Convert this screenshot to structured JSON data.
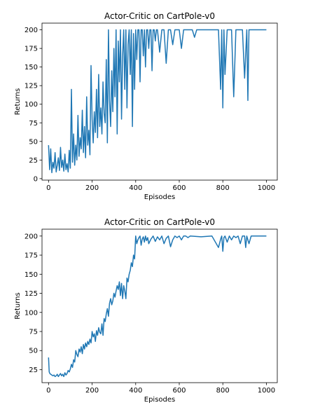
{
  "chart_data": [
    {
      "type": "line",
      "title": "Actor-Critic on CartPole-v0",
      "xlabel": "Episodes",
      "ylabel": "Returns",
      "xlim": [
        -30,
        1050
      ],
      "ylim": [
        -2,
        209
      ],
      "xticks": [
        0,
        200,
        400,
        600,
        800,
        1000
      ],
      "yticks": [
        0,
        25,
        50,
        75,
        100,
        125,
        150,
        175,
        200
      ],
      "grid": false,
      "color": "#1f77b4",
      "series": [
        {
          "x": [
            0,
            5,
            10,
            15,
            20,
            25,
            30,
            35,
            40,
            45,
            50,
            55,
            60,
            65,
            70,
            75,
            80,
            85,
            90,
            95,
            100,
            105,
            110,
            115,
            120,
            125,
            130,
            135,
            140,
            145,
            150,
            155,
            160,
            165,
            170,
            175,
            180,
            185,
            190,
            195,
            200,
            205,
            210,
            215,
            220,
            225,
            230,
            235,
            240,
            245,
            250,
            255,
            260,
            265,
            270,
            275,
            280,
            285,
            290,
            295,
            300,
            305,
            310,
            315,
            320,
            325,
            330,
            335,
            340,
            345,
            350,
            355,
            360,
            365,
            370,
            375,
            380,
            385,
            390,
            395,
            400,
            405,
            410,
            415,
            420,
            425,
            430,
            435,
            440,
            445,
            450,
            455,
            460,
            465,
            470,
            475,
            480,
            485,
            490,
            495,
            500,
            510,
            520,
            530,
            540,
            550,
            560,
            570,
            580,
            590,
            600,
            610,
            620,
            630,
            640,
            650,
            660,
            670,
            680,
            690,
            700,
            720,
            740,
            760,
            780,
            790,
            795,
            800,
            805,
            810,
            820,
            830,
            840,
            850,
            860,
            870,
            880,
            890,
            900,
            910,
            915,
            920,
            930,
            940,
            950,
            960,
            970,
            980,
            990,
            1000
          ],
          "y": [
            45,
            12,
            40,
            8,
            22,
            14,
            35,
            9,
            18,
            28,
            11,
            42,
            15,
            25,
            10,
            33,
            12,
            20,
            9,
            38,
            14,
            120,
            22,
            60,
            18,
            45,
            25,
            85,
            30,
            55,
            40,
            92,
            35,
            70,
            28,
            110,
            45,
            65,
            32,
            152,
            80,
            48,
            90,
            62,
            120,
            55,
            140,
            70,
            95,
            60,
            130,
            88,
            75,
            160,
            48,
            200,
            105,
            70,
            145,
            90,
            175,
            110,
            200,
            60,
            185,
            130,
            200,
            80,
            165,
            200,
            120,
            200,
            95,
            180,
            200,
            140,
            200,
            70,
            195,
            120,
            200,
            160,
            200,
            200,
            130,
            200,
            200,
            165,
            200,
            150,
            200,
            200,
            175,
            200,
            200,
            145,
            200,
            200,
            185,
            200,
            200,
            170,
            200,
            200,
            155,
            200,
            200,
            180,
            200,
            200,
            200,
            175,
            200,
            200,
            200,
            200,
            200,
            190,
            200,
            200,
            200,
            200,
            200,
            200,
            200,
            120,
            200,
            95,
            200,
            140,
            200,
            200,
            200,
            110,
            200,
            200,
            200,
            200,
            135,
            200,
            105,
            200,
            200,
            200,
            200,
            200,
            200,
            200,
            200,
            200
          ]
        }
      ]
    },
    {
      "type": "line",
      "title": "Actor-Critic on CartPole-v0",
      "xlabel": "Episodes",
      "ylabel": "Returns",
      "xlim": [
        -30,
        1050
      ],
      "ylim": [
        8,
        209
      ],
      "xticks": [
        0,
        200,
        400,
        600,
        800,
        1000
      ],
      "yticks": [
        25,
        50,
        75,
        100,
        125,
        150,
        175,
        200
      ],
      "grid": false,
      "color": "#1f77b4",
      "series": [
        {
          "x": [
            0,
            3,
            6,
            10,
            15,
            20,
            25,
            30,
            35,
            40,
            45,
            50,
            55,
            60,
            65,
            70,
            75,
            80,
            85,
            90,
            95,
            100,
            105,
            110,
            115,
            120,
            125,
            130,
            135,
            140,
            145,
            150,
            155,
            160,
            165,
            170,
            175,
            180,
            185,
            190,
            195,
            200,
            205,
            210,
            215,
            220,
            225,
            230,
            235,
            240,
            245,
            250,
            255,
            260,
            265,
            270,
            275,
            280,
            285,
            290,
            295,
            300,
            305,
            310,
            315,
            320,
            325,
            330,
            335,
            340,
            345,
            350,
            355,
            360,
            365,
            370,
            375,
            380,
            385,
            390,
            395,
            400,
            405,
            410,
            415,
            420,
            425,
            430,
            435,
            440,
            445,
            450,
            455,
            460,
            470,
            480,
            490,
            500,
            510,
            520,
            530,
            540,
            550,
            560,
            570,
            580,
            590,
            600,
            610,
            620,
            630,
            640,
            650,
            700,
            750,
            780,
            790,
            795,
            800,
            805,
            810,
            820,
            830,
            840,
            850,
            860,
            870,
            880,
            890,
            900,
            905,
            910,
            920,
            930,
            940,
            950,
            1000
          ],
          "y": [
            41,
            22,
            20,
            19,
            18,
            17,
            18,
            16,
            17,
            19,
            16,
            18,
            20,
            17,
            19,
            16,
            21,
            18,
            20,
            24,
            22,
            26,
            32,
            28,
            38,
            35,
            50,
            45,
            42,
            52,
            48,
            55,
            46,
            58,
            52,
            60,
            55,
            62,
            58,
            65,
            60,
            75,
            68,
            72,
            62,
            76,
            70,
            80,
            74,
            72,
            85,
            70,
            92,
            88,
            98,
            105,
            95,
            112,
            118,
            110,
            115,
            125,
            120,
            128,
            135,
            130,
            140,
            122,
            138,
            118,
            135,
            128,
            118,
            145,
            140,
            150,
            155,
            165,
            160,
            175,
            170,
            200,
            190,
            195,
            198,
            200,
            188,
            196,
            199,
            192,
            200,
            194,
            198,
            190,
            196,
            200,
            193,
            199,
            195,
            200,
            190,
            197,
            200,
            186,
            195,
            200,
            198,
            200,
            195,
            200,
            200,
            198,
            200,
            199,
            200,
            185,
            196,
            200,
            180,
            198,
            200,
            192,
            200,
            195,
            200,
            198,
            200,
            190,
            200,
            200,
            185,
            200,
            190,
            200,
            200,
            200,
            200
          ]
        }
      ]
    }
  ]
}
